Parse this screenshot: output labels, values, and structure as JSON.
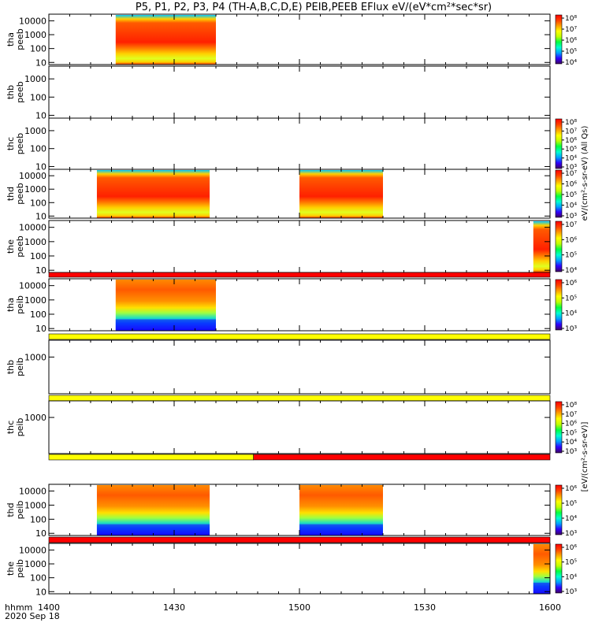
{
  "chart_data": {
    "type": "heatmap",
    "title": "P5, P1, P2, P3, P4 (TH-A,B,C,D,E) PEIB,PEEB EFlux eV/(eV*cm²*sec*sr)",
    "xaxis": {
      "label": "hhmm",
      "date": "2020 Sep 18",
      "ticks": [
        "1400",
        "1430",
        "1500",
        "1530",
        "1600"
      ],
      "range_minutes": [
        0,
        120
      ]
    },
    "yaxis": {
      "scale": "log",
      "unit": "eV"
    },
    "panels": [
      {
        "name": "tha peeb",
        "line1": "tha",
        "line2": "peeb",
        "ylim": [
          7,
          30000
        ],
        "yticks": [
          "10",
          "100",
          "1000",
          "10000"
        ],
        "colorbar": true,
        "cbar_ticks": [
          "10⁴",
          "10⁵",
          "10⁶",
          "10⁷",
          "10⁸"
        ],
        "blocks": [
          {
            "start": 16,
            "end": 40,
            "style": "eesa"
          }
        ],
        "strip": null
      },
      {
        "name": "thb peeb",
        "line1": "thb",
        "line2": "peeb",
        "ylim": [
          7,
          5000
        ],
        "yticks": [
          "10",
          "100",
          "1000"
        ],
        "colorbar": false,
        "blocks": [],
        "strip": null
      },
      {
        "name": "thc peeb",
        "line1": "thc",
        "line2": "peeb",
        "ylim": [
          7,
          5000
        ],
        "yticks": [
          "10",
          "100",
          "1000"
        ],
        "colorbar": true,
        "cbar_ticks": [
          "10³",
          "10⁴",
          "10⁵",
          "10⁶",
          "10⁷",
          "10⁸"
        ],
        "blocks": [],
        "strip": null
      },
      {
        "name": "thd peeb",
        "line1": "thd",
        "line2": "peeb",
        "ylim": [
          7,
          30000
        ],
        "yticks": [
          "10",
          "100",
          "1000",
          "10000"
        ],
        "colorbar": true,
        "cbar_ticks": [
          "10³",
          "10⁴",
          "10⁵",
          "10⁶",
          "10⁷"
        ],
        "blocks": [
          {
            "start": 11.5,
            "end": 38.5,
            "style": "eesa"
          },
          {
            "start": 60,
            "end": 80,
            "style": "eesa"
          }
        ],
        "strip": null
      },
      {
        "name": "the peeb",
        "line1": "the",
        "line2": "peeb",
        "ylim": [
          7,
          30000
        ],
        "yticks": [
          "10",
          "100",
          "1000",
          "10000"
        ],
        "colorbar": true,
        "cbar_ticks": [
          "10⁴",
          "10⁵",
          "10⁶",
          "10⁷"
        ],
        "blocks": [
          {
            "start": 116,
            "end": 120,
            "style": "eesa"
          }
        ],
        "strip": [
          "red"
        ]
      },
      {
        "name": "tha peib",
        "line1": "tha",
        "line2": "peib",
        "ylim": [
          7,
          30000
        ],
        "yticks": [
          "10",
          "100",
          "1000",
          "10000"
        ],
        "colorbar": true,
        "cbar_ticks": [
          "10³",
          "10⁴",
          "10⁵",
          "10⁶"
        ],
        "blocks": [
          {
            "start": 16,
            "end": 40,
            "style": "iesa"
          }
        ],
        "strip": [
          "yellow"
        ]
      },
      {
        "name": "thb peib",
        "line1": "thb",
        "line2": "peib",
        "ylim": [
          30,
          5000
        ],
        "yticks": [
          "1000"
        ],
        "colorbar": false,
        "blocks": [],
        "strip": [
          "yellow"
        ]
      },
      {
        "name": "thc peib",
        "line1": "thc",
        "line2": "peib",
        "ylim": [
          30,
          5000
        ],
        "yticks": [
          "1000"
        ],
        "colorbar": true,
        "cbar_ticks": [
          "10³",
          "10⁴",
          "10⁵",
          "10⁶",
          "10⁷",
          "10⁸"
        ],
        "blocks": [],
        "strip": [
          "yellow",
          "red"
        ]
      },
      {
        "name": "thd peib",
        "line1": "thd",
        "line2": "peib",
        "ylim": [
          7,
          30000
        ],
        "yticks": [
          "10",
          "100",
          "1000",
          "10000"
        ],
        "colorbar": true,
        "cbar_ticks": [
          "10³",
          "10⁴",
          "10⁵",
          "10⁶"
        ],
        "blocks": [
          {
            "start": 11.5,
            "end": 38.5,
            "style": "iesa"
          },
          {
            "start": 60,
            "end": 80,
            "style": "iesa"
          }
        ],
        "strip": [
          "red"
        ]
      },
      {
        "name": "the peib",
        "line1": "the",
        "line2": "peib",
        "ylim": [
          7,
          30000
        ],
        "yticks": [
          "10",
          "100",
          "1000",
          "10000"
        ],
        "colorbar": true,
        "cbar_ticks": [
          "10³",
          "10⁴",
          "10⁵",
          "10⁶"
        ],
        "blocks": [
          {
            "start": 116,
            "end": 120,
            "style": "iesa"
          }
        ],
        "strip": null
      }
    ],
    "colorbar_labels": [
      "eV/(cm²-s-sr-eV) (All Qs)",
      "[eV/(cm²-s-sr-eV)]"
    ],
    "strip_colors": {
      "red": "#ff0000",
      "yellow": "#ffff00"
    },
    "colormap": [
      "#400060",
      "#3000ff",
      "#00a0ff",
      "#00ffd0",
      "#00ff40",
      "#c0ff00",
      "#ffff00",
      "#ffa000",
      "#ff4000",
      "#ff0000"
    ]
  }
}
